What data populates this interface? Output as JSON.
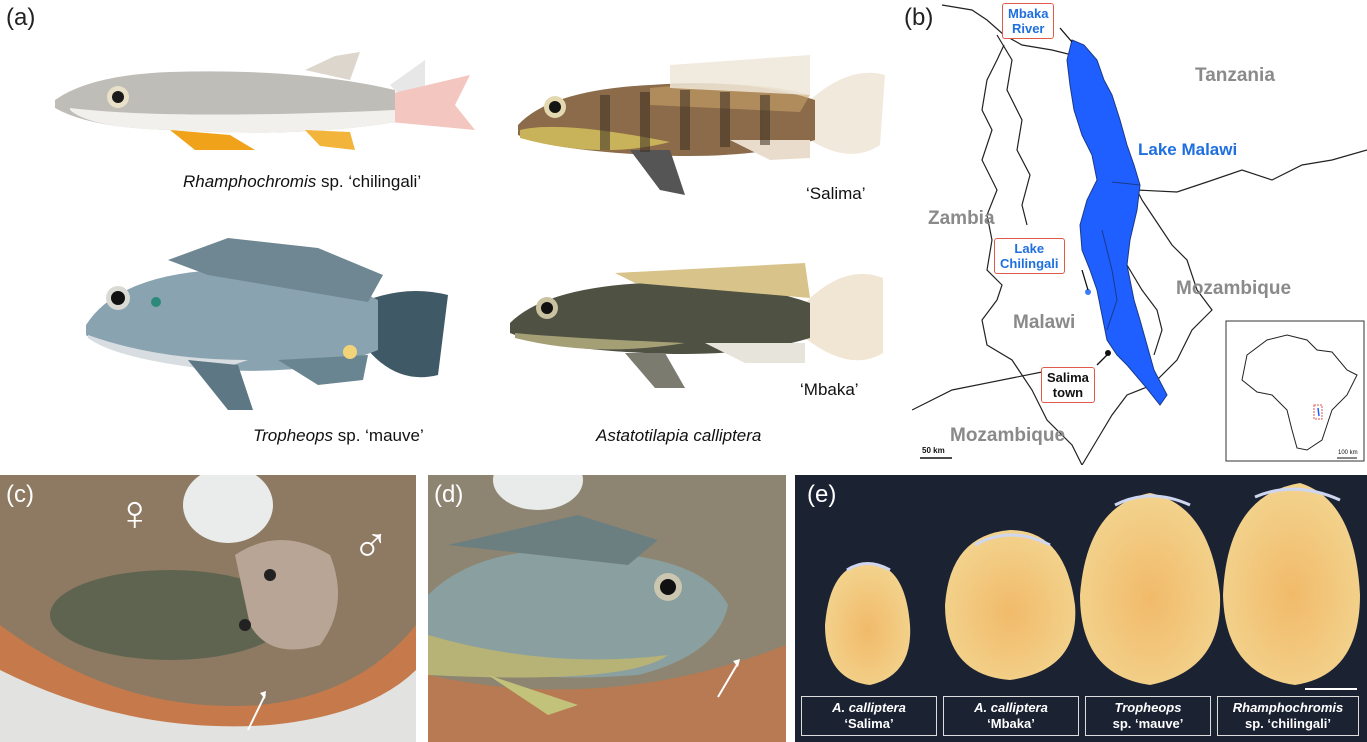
{
  "panels": {
    "a": "(a)",
    "b": "(b)",
    "c": "(c)",
    "d": "(d)",
    "e": "(e)"
  },
  "fish": {
    "rhamphochromis_italic": "Rhamphochromis",
    "rhamphochromis_rest": " sp. ‘chilingali’",
    "salima": "‘Salima’",
    "tropheops_italic": "Tropheops",
    "tropheops_rest": " sp. ‘mauve’",
    "mbaka": "‘Mbaka’",
    "astatotilapia": "Astatotilapia calliptera"
  },
  "map": {
    "tanzania": "Tanzania",
    "lake_malawi": "Lake Malawi",
    "zambia": "Zambia",
    "mozambique_e": "Mozambique",
    "malawi": "Malawi",
    "mozambique_s": "Mozambique",
    "mbaka_river_1": "Mbaka",
    "mbaka_river_2": "River",
    "lake_chilingali_1": "Lake",
    "lake_chilingali_2": "Chilingali",
    "salima_town_1": "Salima",
    "salima_town_2": "town",
    "scale_main": "50 km",
    "scale_inset": "100 km"
  },
  "symbols": {
    "female": "♀",
    "male": "♂"
  },
  "eggs": [
    {
      "line1": "A. calliptera",
      "line2": "‘Salima’"
    },
    {
      "line1": "A. calliptera",
      "line2": "‘Mbaka’"
    },
    {
      "line1": "Tropheops",
      "line2": "sp. ‘mauve’"
    },
    {
      "line1": "Rhamphochromis",
      "line2": "sp. ‘chilingali’"
    }
  ],
  "colors": {
    "lake_blue": "#1f5fff",
    "callout_border": "#e05a4a",
    "egg_bg": "#1b2232",
    "egg_yolk": "#f0c870"
  }
}
